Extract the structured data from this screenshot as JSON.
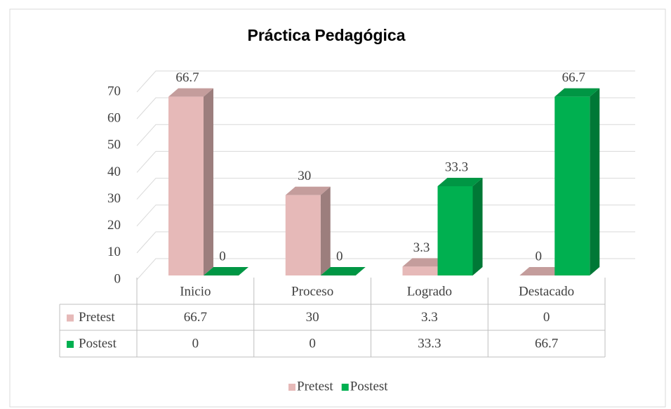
{
  "chart_data": {
    "type": "bar",
    "title": "Práctica Pedagógica",
    "categories": [
      "Inicio",
      "Proceso",
      "Logrado",
      "Destacado"
    ],
    "series": [
      {
        "name": "Pretest",
        "color": "#e6b9b8",
        "values": [
          66.7,
          30,
          3.3,
          0
        ]
      },
      {
        "name": "Postest",
        "color": "#00b050",
        "values": [
          0,
          0,
          33.3,
          66.7
        ]
      }
    ],
    "ylim": [
      0,
      70
    ],
    "yticks": [
      0,
      10,
      20,
      30,
      40,
      50,
      60,
      70
    ],
    "grid": true,
    "legend": "bottom"
  }
}
